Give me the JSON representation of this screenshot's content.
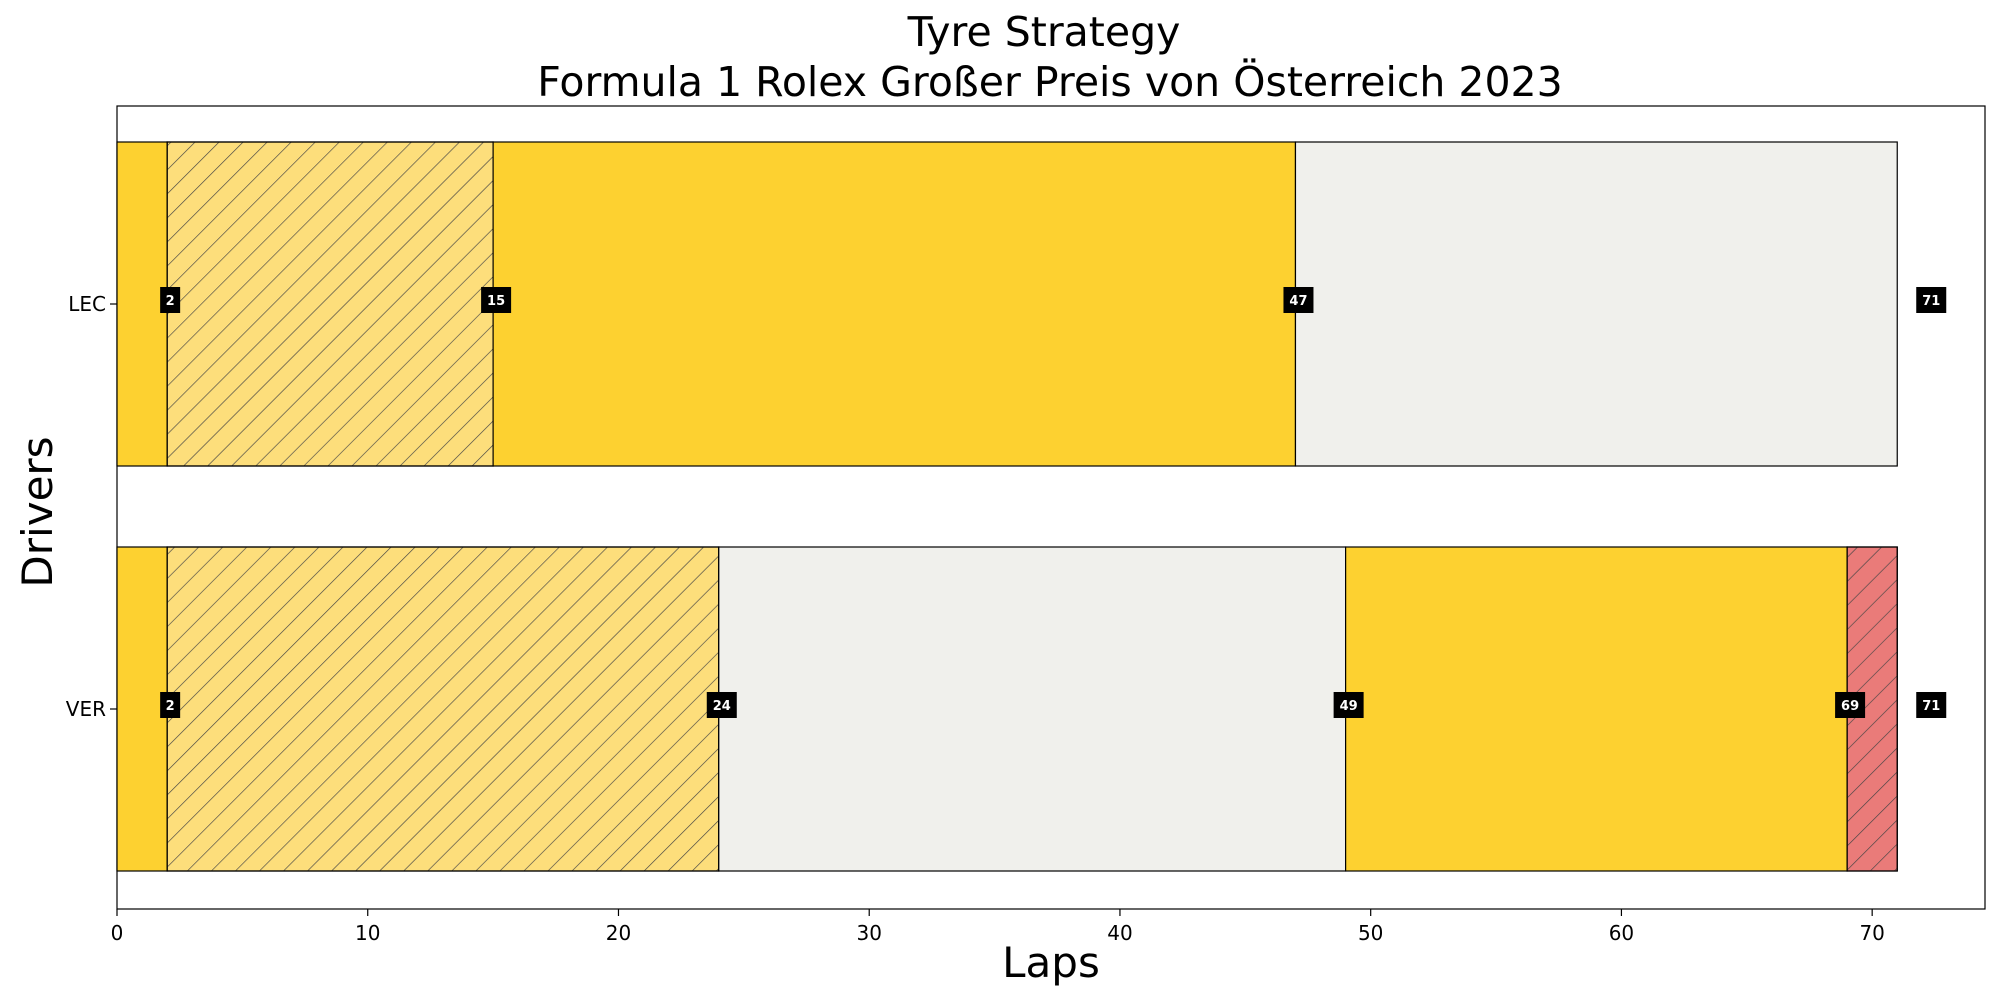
{
  "chart_data": {
    "type": "bar",
    "orientation": "horizontal-stacked",
    "title": "Tyre Strategy",
    "subtitle": "Formula 1 Rolex Großer Preis von Österreich 2023",
    "xlabel": "Laps",
    "ylabel": "Drivers",
    "xlim": [
      0,
      74.5
    ],
    "x_ticks": [
      "0",
      "10",
      "20",
      "30",
      "40",
      "50",
      "60",
      "70"
    ],
    "grid": false,
    "categories": [
      "LEC",
      "VER"
    ],
    "compounds": {
      "MEDIUM": {
        "color": "#FDD130",
        "hatch": false
      },
      "MEDIUM_USED": {
        "color": "#FDDE7B",
        "hatch": true
      },
      "HARD": {
        "color": "#F0F0EC",
        "hatch": false
      },
      "SOFT_USED": {
        "color": "#EA7B79",
        "hatch": true
      }
    },
    "drivers": [
      {
        "name": "LEC",
        "stints": [
          {
            "start": 0,
            "end": 2,
            "compound": "MEDIUM"
          },
          {
            "start": 2,
            "end": 15,
            "compound": "MEDIUM_USED"
          },
          {
            "start": 15,
            "end": 47,
            "compound": "MEDIUM"
          },
          {
            "start": 47,
            "end": 71,
            "compound": "HARD"
          }
        ],
        "lap_labels": [
          "2",
          "15",
          "47",
          "71"
        ]
      },
      {
        "name": "VER",
        "stints": [
          {
            "start": 0,
            "end": 2,
            "compound": "MEDIUM"
          },
          {
            "start": 2,
            "end": 24,
            "compound": "MEDIUM_USED"
          },
          {
            "start": 24,
            "end": 49,
            "compound": "HARD"
          },
          {
            "start": 49,
            "end": 69,
            "compound": "MEDIUM"
          },
          {
            "start": 69,
            "end": 71,
            "compound": "SOFT_USED"
          }
        ],
        "lap_labels": [
          "2",
          "24",
          "49",
          "69",
          "71"
        ]
      }
    ]
  }
}
